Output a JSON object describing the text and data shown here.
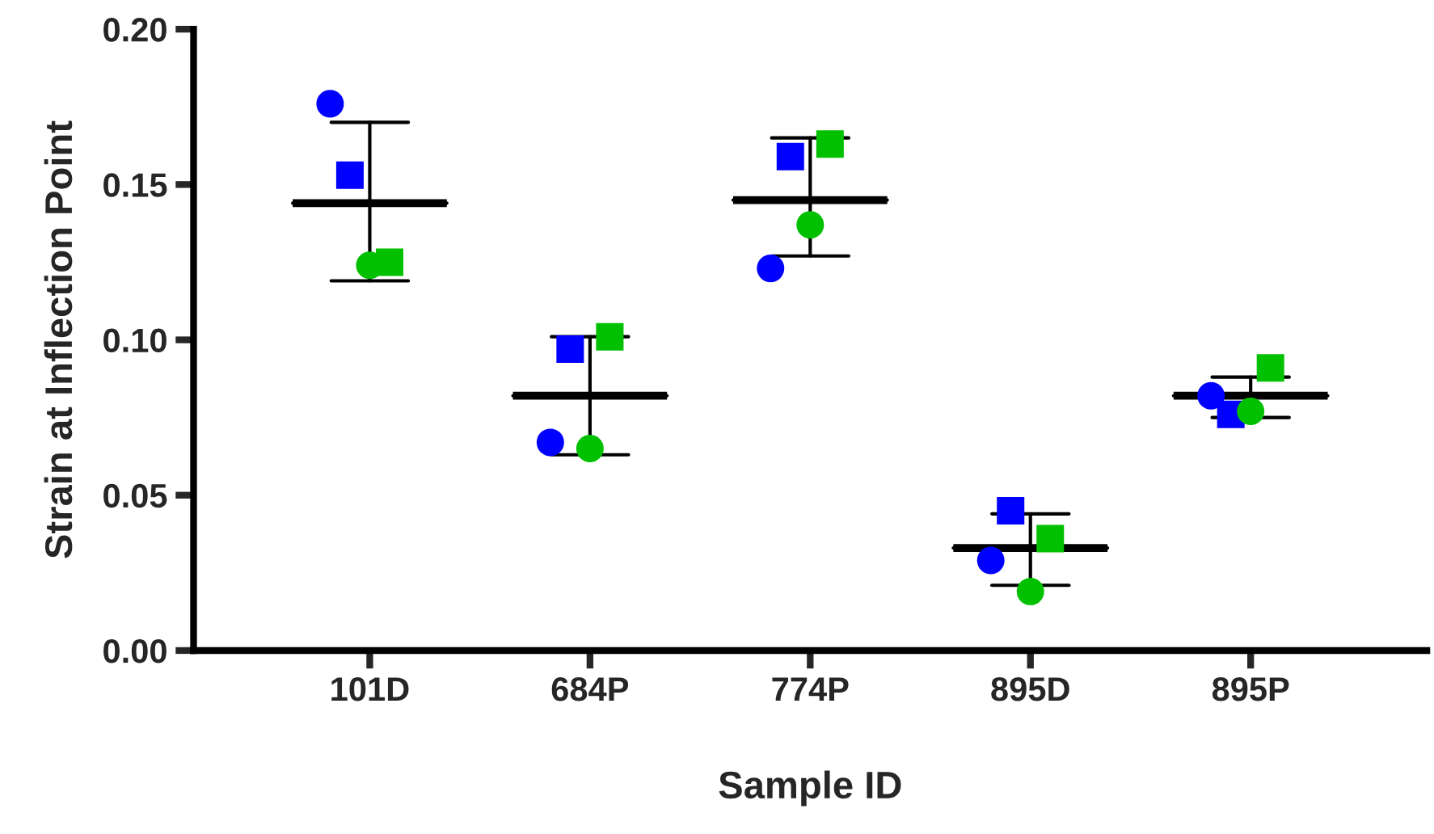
{
  "chart_data": {
    "type": "scatter",
    "xlabel": "Sample ID",
    "ylabel": "Strain at Inflection Point",
    "categories": [
      "101D",
      "684P",
      "774P",
      "895D",
      "895P"
    ],
    "ylim": [
      0,
      0.2
    ],
    "yticks": [
      {
        "value": 0,
        "label": "0.00"
      },
      {
        "value": 0.05,
        "label": "0.05"
      },
      {
        "value": 0.1,
        "label": "0.10"
      },
      {
        "value": 0.15,
        "label": "0.15"
      },
      {
        "value": 0.2,
        "label": "0.20"
      }
    ],
    "grid": false,
    "legend": false,
    "series": [
      {
        "type": "scatter",
        "marker": "circle",
        "color": "#0000ff",
        "values": [
          0.176,
          0.067,
          0.123,
          0.029,
          0.082
        ]
      },
      {
        "type": "scatter",
        "marker": "square",
        "color": "#0000ff",
        "values": [
          0.153,
          0.097,
          0.159,
          0.045,
          0.076
        ]
      },
      {
        "type": "scatter",
        "marker": "circle",
        "color": "#00c000",
        "values": [
          0.124,
          0.065,
          0.137,
          0.019,
          0.077
        ]
      },
      {
        "type": "scatter",
        "marker": "square",
        "color": "#00c000",
        "values": [
          0.125,
          0.101,
          0.163,
          0.036,
          0.091
        ]
      },
      {
        "type": "box",
        "color": "#000000",
        "boxes": [
          {
            "low": 0.119,
            "q1": 0.144,
            "median": 0.144,
            "q3": 0.144,
            "high": 0.17
          },
          {
            "low": 0.063,
            "q1": 0.082,
            "median": 0.082,
            "q3": 0.082,
            "high": 0.101
          },
          {
            "low": 0.127,
            "q1": 0.145,
            "median": 0.145,
            "q3": 0.145,
            "high": 0.165
          },
          {
            "low": 0.021,
            "q1": 0.033,
            "median": 0.033,
            "q3": 0.033,
            "high": 0.044
          },
          {
            "low": 0.075,
            "q1": 0.082,
            "median": 0.082,
            "q3": 0.082,
            "high": 0.088
          }
        ]
      }
    ]
  }
}
